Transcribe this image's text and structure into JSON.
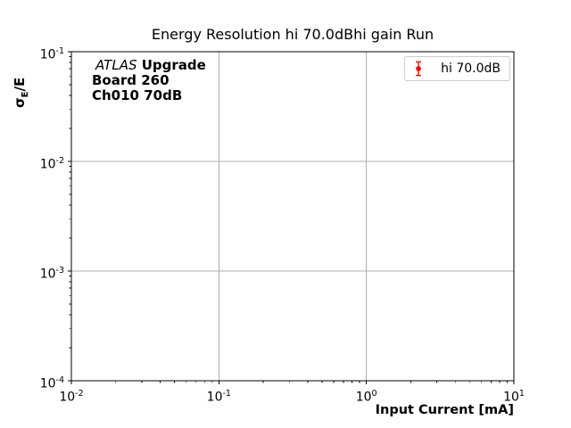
{
  "chart_data": {
    "type": "scatter",
    "title": "Energy Resolution hi 70.0dBhi gain Run",
    "xlabel": "Input Current [mA]",
    "ylabel": "σ_E/E",
    "x_scale": "log",
    "y_scale": "log",
    "xlim": [
      0.01,
      10
    ],
    "ylim": [
      0.0001,
      0.1
    ],
    "x_tick_labels": [
      "10^-2",
      "10^-1",
      "10^0",
      "10^1"
    ],
    "y_tick_labels": [
      "10^-1",
      "10^-2",
      "10^-3",
      "10^-4"
    ],
    "grid": true,
    "legend": {
      "label": "hi 70.0dB",
      "position": "upper right"
    },
    "series": [
      {
        "name": "hi 70.0dB",
        "color": "#ff0000",
        "marker": "circle-errorbar",
        "x": [],
        "y": [],
        "yerr": []
      }
    ],
    "colors": {
      "grid": "#b0b0b0",
      "spine": "#000000",
      "text": "#000000",
      "legend_border": "#cccccc",
      "background": "#ffffff"
    }
  },
  "ylabel_parts": {
    "sigma": "σ",
    "subscript": "E",
    "rest": "/E"
  },
  "annotation": {
    "line1_italic": "ATLAS",
    "line1_bold": "Upgrade",
    "line2": "Board 260",
    "line3": "Ch010 70dB"
  }
}
